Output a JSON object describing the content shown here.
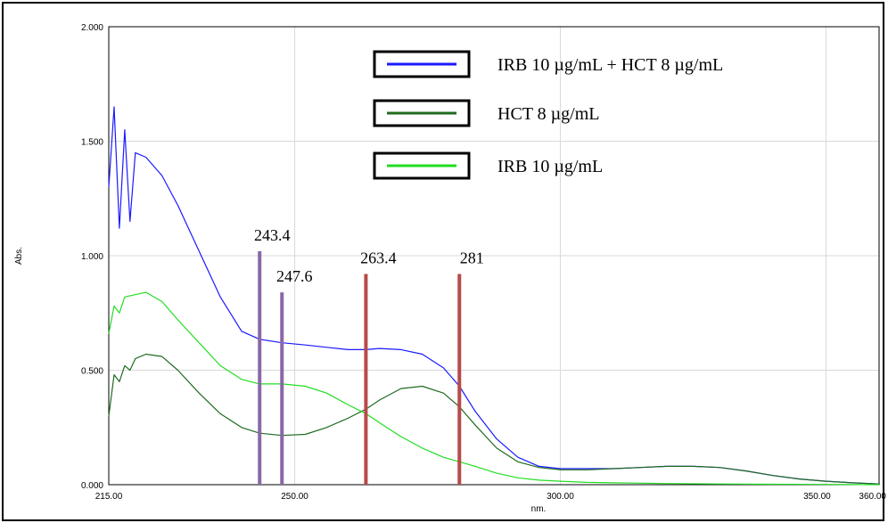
{
  "chart_data": {
    "type": "line",
    "xlabel": "nm.",
    "ylabel": "Abs.",
    "xlim": [
      215,
      360
    ],
    "ylim": [
      0,
      2
    ],
    "x_ticks": [
      "215.00",
      "250.00",
      "300.00",
      "350.00",
      "360.00"
    ],
    "x_tick_values": [
      215,
      250,
      300,
      350,
      360
    ],
    "y_ticks": [
      "0.000",
      "0.500",
      "1.000",
      "1.500",
      "2.000"
    ],
    "y_tick_values": [
      0,
      0.5,
      1.0,
      1.5,
      2.0
    ],
    "grid": true,
    "legend_position": "top-right",
    "legend": [
      {
        "label": "IRB 10  µg/mL  + HCT 8   µg/mL",
        "color": "#1a1aff"
      },
      {
        "label": "HCT 8   µg/mL",
        "color": "#1f6b1f"
      },
      {
        "label": "IRB  10 µg/mL",
        "color": "#22dd22"
      }
    ],
    "series": [
      {
        "color": "#1a1aff",
        "x": [
          215,
          216,
          217,
          218,
          219,
          220,
          222,
          225,
          228,
          232,
          236,
          240,
          243.4,
          247.6,
          252,
          256,
          260,
          263.4,
          266,
          270,
          274,
          278,
          281,
          284,
          288,
          292,
          296,
          300,
          305,
          310,
          315,
          320,
          325,
          330,
          335,
          340,
          345,
          350,
          355,
          360
        ],
        "y": [
          1.3,
          1.65,
          1.12,
          1.55,
          1.15,
          1.45,
          1.43,
          1.35,
          1.22,
          1.02,
          0.82,
          0.67,
          0.635,
          0.62,
          0.61,
          0.6,
          0.59,
          0.59,
          0.595,
          0.59,
          0.57,
          0.51,
          0.43,
          0.32,
          0.2,
          0.12,
          0.08,
          0.07,
          0.07,
          0.07,
          0.075,
          0.08,
          0.08,
          0.075,
          0.06,
          0.04,
          0.025,
          0.015,
          0.008,
          0.003
        ]
      },
      {
        "color": "#1f6b1f",
        "x": [
          215,
          216,
          217,
          218,
          219,
          220,
          222,
          225,
          228,
          232,
          236,
          240,
          243.4,
          247.6,
          252,
          256,
          260,
          263.4,
          266,
          270,
          274,
          278,
          281,
          284,
          288,
          292,
          296,
          300,
          305,
          310,
          315,
          320,
          325,
          330,
          335,
          340,
          345,
          350,
          355,
          360
        ],
        "y": [
          0.3,
          0.48,
          0.45,
          0.52,
          0.5,
          0.55,
          0.57,
          0.56,
          0.5,
          0.4,
          0.31,
          0.25,
          0.225,
          0.215,
          0.22,
          0.25,
          0.29,
          0.33,
          0.37,
          0.42,
          0.43,
          0.4,
          0.34,
          0.26,
          0.16,
          0.1,
          0.075,
          0.065,
          0.065,
          0.07,
          0.075,
          0.08,
          0.08,
          0.075,
          0.06,
          0.04,
          0.025,
          0.015,
          0.008,
          0.003
        ]
      },
      {
        "color": "#22dd22",
        "x": [
          215,
          216,
          217,
          218,
          220,
          222,
          225,
          228,
          232,
          236,
          240,
          243.4,
          247.6,
          252,
          256,
          260,
          263.4,
          266,
          270,
          274,
          278,
          281,
          284,
          288,
          292,
          296,
          300,
          305,
          310,
          320,
          330,
          340,
          350,
          360
        ],
        "y": [
          0.66,
          0.78,
          0.75,
          0.82,
          0.83,
          0.84,
          0.8,
          0.72,
          0.62,
          0.52,
          0.46,
          0.44,
          0.44,
          0.43,
          0.4,
          0.35,
          0.31,
          0.27,
          0.21,
          0.16,
          0.12,
          0.1,
          0.08,
          0.05,
          0.03,
          0.02,
          0.015,
          0.01,
          0.008,
          0.005,
          0.003,
          0.002,
          0.001,
          0.0
        ]
      }
    ],
    "vertical_markers": [
      {
        "x": 243.4,
        "label": "243.4",
        "ymax": 1.02,
        "color": "#8a68a8"
      },
      {
        "x": 247.6,
        "label": "247.6",
        "ymax": 0.84,
        "color": "#8a68a8"
      },
      {
        "x": 263.4,
        "label": "263.4",
        "ymax": 0.92,
        "color": "#b84a4a"
      },
      {
        "x": 281,
        "label": "281",
        "ymax": 0.92,
        "color": "#b84a4a"
      }
    ]
  }
}
